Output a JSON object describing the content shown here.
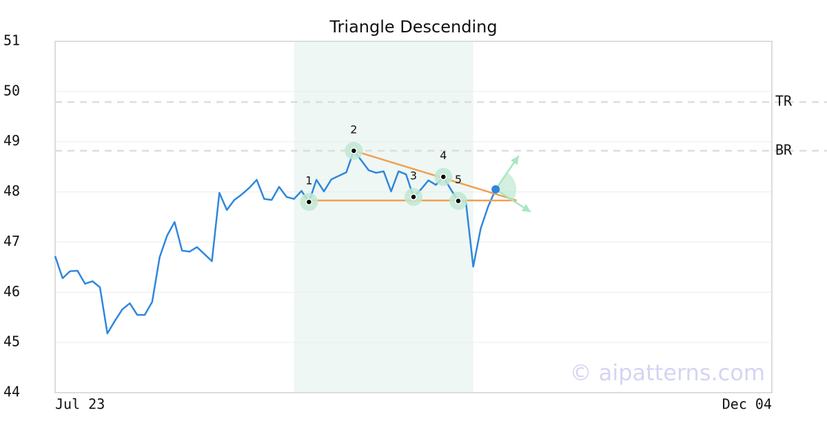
{
  "chart_data": {
    "type": "line",
    "title": "Triangle Descending",
    "categories": [
      "Jul 23",
      null,
      null,
      null,
      null,
      null,
      null,
      null,
      null,
      null,
      null,
      null,
      null,
      null,
      null,
      null,
      null,
      null,
      null,
      null,
      null,
      null,
      null,
      null,
      null,
      null,
      null,
      null,
      null,
      null,
      null,
      null,
      null,
      null,
      null,
      null,
      null,
      null,
      null,
      null,
      null,
      null,
      null,
      null,
      null,
      null,
      null,
      null,
      null,
      null,
      null,
      null,
      null,
      null,
      null,
      null,
      null,
      null,
      null,
      null,
      null,
      null,
      null,
      null,
      null,
      null,
      null,
      null,
      null,
      null,
      null,
      null,
      null,
      null,
      null,
      null,
      null,
      null,
      null,
      null,
      null,
      null,
      null,
      null,
      null,
      null,
      null,
      null,
      null,
      null,
      null,
      null,
      null,
      null,
      null,
      null,
      "Dec 04"
    ],
    "series": [
      {
        "color": "#2f86dd",
        "values": [
          46.72,
          46.28,
          46.42,
          46.43,
          46.17,
          46.22,
          46.1,
          45.18,
          45.43,
          45.66,
          45.78,
          45.55,
          45.55,
          45.81,
          46.7,
          47.13,
          47.4,
          46.83,
          46.81,
          46.9,
          46.76,
          46.62,
          47.98,
          47.64,
          47.84,
          47.95,
          48.08,
          48.24,
          47.86,
          47.84,
          48.1,
          47.9,
          47.86,
          48.02,
          47.8,
          48.24,
          48.01,
          48.25,
          48.32,
          48.39,
          48.82,
          48.63,
          48.43,
          48.38,
          48.41,
          48.01,
          48.41,
          48.35,
          47.9,
          48.05,
          48.23,
          48.14,
          48.3,
          48.05,
          47.82,
          47.82,
          46.51,
          47.27,
          47.71,
          48.05,
          null,
          null,
          null,
          null,
          null,
          null,
          null,
          null,
          null,
          null,
          null,
          null,
          null,
          null,
          null,
          null,
          null,
          null,
          null,
          null,
          null,
          null,
          null,
          null,
          null,
          null,
          null,
          null,
          null,
          null,
          null,
          null,
          null,
          null,
          null,
          null,
          null
        ]
      }
    ],
    "pivots": [
      {
        "label": "1",
        "x": 34,
        "y": 47.8
      },
      {
        "label": "2",
        "x": 40,
        "y": 48.82
      },
      {
        "label": "3",
        "x": 48,
        "y": 47.9
      },
      {
        "label": "4",
        "x": 52,
        "y": 48.3
      },
      {
        "label": "5",
        "x": 54,
        "y": 47.82
      }
    ],
    "trend_lines": [
      {
        "color": "#f0a050",
        "x": [
          40,
          61.8
        ],
        "y": [
          48.82,
          47.83
        ]
      },
      {
        "color": "#f0a050",
        "x": [
          34,
          61.8
        ],
        "y": [
          47.83,
          47.83
        ]
      }
    ],
    "highlight_range": [
      32,
      56
    ],
    "levels": [
      {
        "label": "TR",
        "value": 49.79
      },
      {
        "label": "BR",
        "value": 48.82
      }
    ],
    "breakout": {
      "x": 59,
      "y": 48.05
    },
    "projections": [
      {
        "x": 62.1,
        "y": 48.72
      },
      {
        "x": 63.7,
        "y": 47.6
      }
    ],
    "ylim": [
      44,
      51
    ],
    "yticks": [
      44,
      45,
      46,
      47,
      48,
      49,
      50,
      51
    ],
    "grid": true,
    "watermark": "© aipatterns.com"
  }
}
